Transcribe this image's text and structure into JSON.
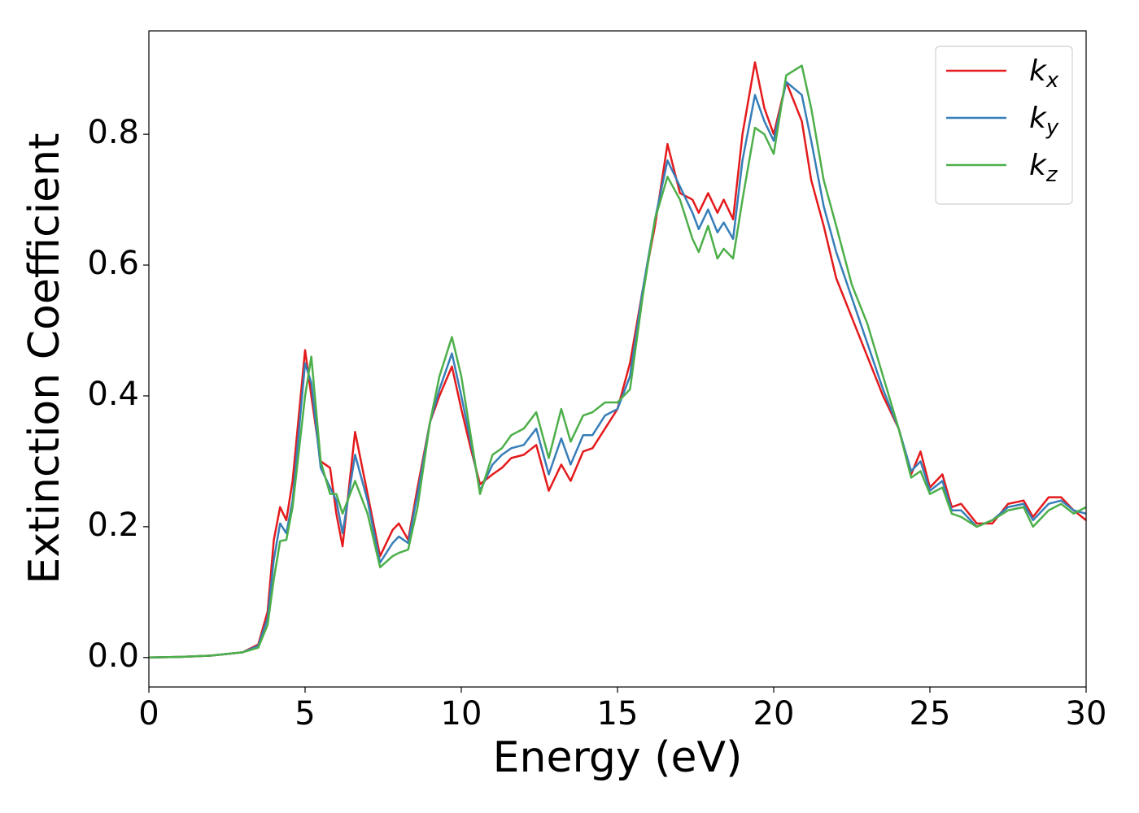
{
  "chart_data": {
    "type": "line",
    "x_label": "Energy (eV)",
    "y_label": "Extinction Coefficient",
    "xlim": [
      0,
      30
    ],
    "ylim": [
      -0.045,
      0.958
    ],
    "xticks": [
      0,
      5,
      10,
      15,
      20,
      25,
      30
    ],
    "yticks": [
      {
        "value": 0,
        "label": "0.0"
      },
      0.2,
      0.4,
      0.6,
      0.8
    ],
    "legend": "upper right",
    "x": [
      0,
      1,
      2,
      3,
      3.5,
      3.8,
      4.0,
      4.2,
      4.4,
      4.6,
      5.0,
      5.2,
      5.5,
      5.8,
      6.0,
      6.2,
      6.6,
      7.0,
      7.4,
      7.8,
      8.0,
      8.3,
      8.6,
      9.0,
      9.3,
      9.7,
      10.0,
      10.3,
      10.6,
      11.0,
      11.3,
      11.6,
      12.0,
      12.4,
      12.8,
      13.2,
      13.5,
      13.9,
      14.2,
      14.6,
      15.0,
      15.4,
      15.8,
      16.2,
      16.6,
      17.0,
      17.4,
      17.6,
      17.9,
      18.2,
      18.4,
      18.7,
      19.0,
      19.4,
      19.7,
      20.0,
      20.4,
      20.9,
      21.2,
      21.6,
      22.0,
      22.5,
      23.0,
      23.5,
      24.0,
      24.4,
      24.7,
      25.0,
      25.4,
      25.7,
      26.0,
      26.5,
      27.0,
      27.5,
      28.0,
      28.3,
      28.8,
      29.2,
      29.6,
      30
    ],
    "series": [
      {
        "name": "kx",
        "color": "#e41a1c",
        "values": [
          0,
          0.001,
          0.003,
          0.008,
          0.02,
          0.07,
          0.18,
          0.23,
          0.21,
          0.27,
          0.47,
          0.4,
          0.3,
          0.29,
          0.22,
          0.17,
          0.345,
          0.25,
          0.155,
          0.195,
          0.205,
          0.18,
          0.26,
          0.36,
          0.4,
          0.445,
          0.38,
          0.32,
          0.265,
          0.28,
          0.29,
          0.305,
          0.31,
          0.325,
          0.255,
          0.295,
          0.27,
          0.315,
          0.32,
          0.35,
          0.38,
          0.45,
          0.56,
          0.66,
          0.785,
          0.71,
          0.7,
          0.68,
          0.71,
          0.68,
          0.7,
          0.67,
          0.8,
          0.91,
          0.84,
          0.8,
          0.88,
          0.82,
          0.73,
          0.66,
          0.58,
          0.52,
          0.46,
          0.4,
          0.35,
          0.28,
          0.315,
          0.26,
          0.28,
          0.23,
          0.235,
          0.205,
          0.205,
          0.235,
          0.24,
          0.215,
          0.245,
          0.245,
          0.225,
          0.21
        ]
      },
      {
        "name": "ky",
        "color": "#377eb8",
        "values": [
          0,
          0.001,
          0.003,
          0.008,
          0.018,
          0.06,
          0.15,
          0.205,
          0.19,
          0.24,
          0.45,
          0.42,
          0.29,
          0.26,
          0.24,
          0.19,
          0.31,
          0.24,
          0.145,
          0.175,
          0.185,
          0.175,
          0.25,
          0.36,
          0.41,
          0.465,
          0.4,
          0.33,
          0.255,
          0.295,
          0.31,
          0.32,
          0.325,
          0.35,
          0.28,
          0.335,
          0.295,
          0.34,
          0.34,
          0.37,
          0.38,
          0.43,
          0.56,
          0.67,
          0.76,
          0.72,
          0.68,
          0.655,
          0.685,
          0.65,
          0.665,
          0.64,
          0.76,
          0.86,
          0.82,
          0.79,
          0.88,
          0.86,
          0.79,
          0.69,
          0.62,
          0.55,
          0.48,
          0.41,
          0.35,
          0.285,
          0.3,
          0.255,
          0.27,
          0.225,
          0.225,
          0.2,
          0.21,
          0.23,
          0.235,
          0.21,
          0.235,
          0.24,
          0.225,
          0.22
        ]
      },
      {
        "name": "kz",
        "color": "#4daf4a",
        "values": [
          0,
          0.001,
          0.003,
          0.008,
          0.015,
          0.05,
          0.12,
          0.178,
          0.18,
          0.23,
          0.4,
          0.46,
          0.3,
          0.25,
          0.25,
          0.22,
          0.27,
          0.22,
          0.138,
          0.155,
          0.16,
          0.165,
          0.23,
          0.36,
          0.43,
          0.49,
          0.43,
          0.34,
          0.25,
          0.31,
          0.32,
          0.34,
          0.35,
          0.375,
          0.305,
          0.38,
          0.33,
          0.37,
          0.375,
          0.39,
          0.39,
          0.41,
          0.55,
          0.67,
          0.735,
          0.7,
          0.64,
          0.62,
          0.66,
          0.61,
          0.625,
          0.61,
          0.7,
          0.81,
          0.8,
          0.77,
          0.89,
          0.905,
          0.84,
          0.73,
          0.66,
          0.57,
          0.51,
          0.43,
          0.35,
          0.275,
          0.285,
          0.25,
          0.26,
          0.22,
          0.215,
          0.2,
          0.21,
          0.225,
          0.23,
          0.2,
          0.225,
          0.235,
          0.22,
          0.23
        ]
      }
    ]
  }
}
